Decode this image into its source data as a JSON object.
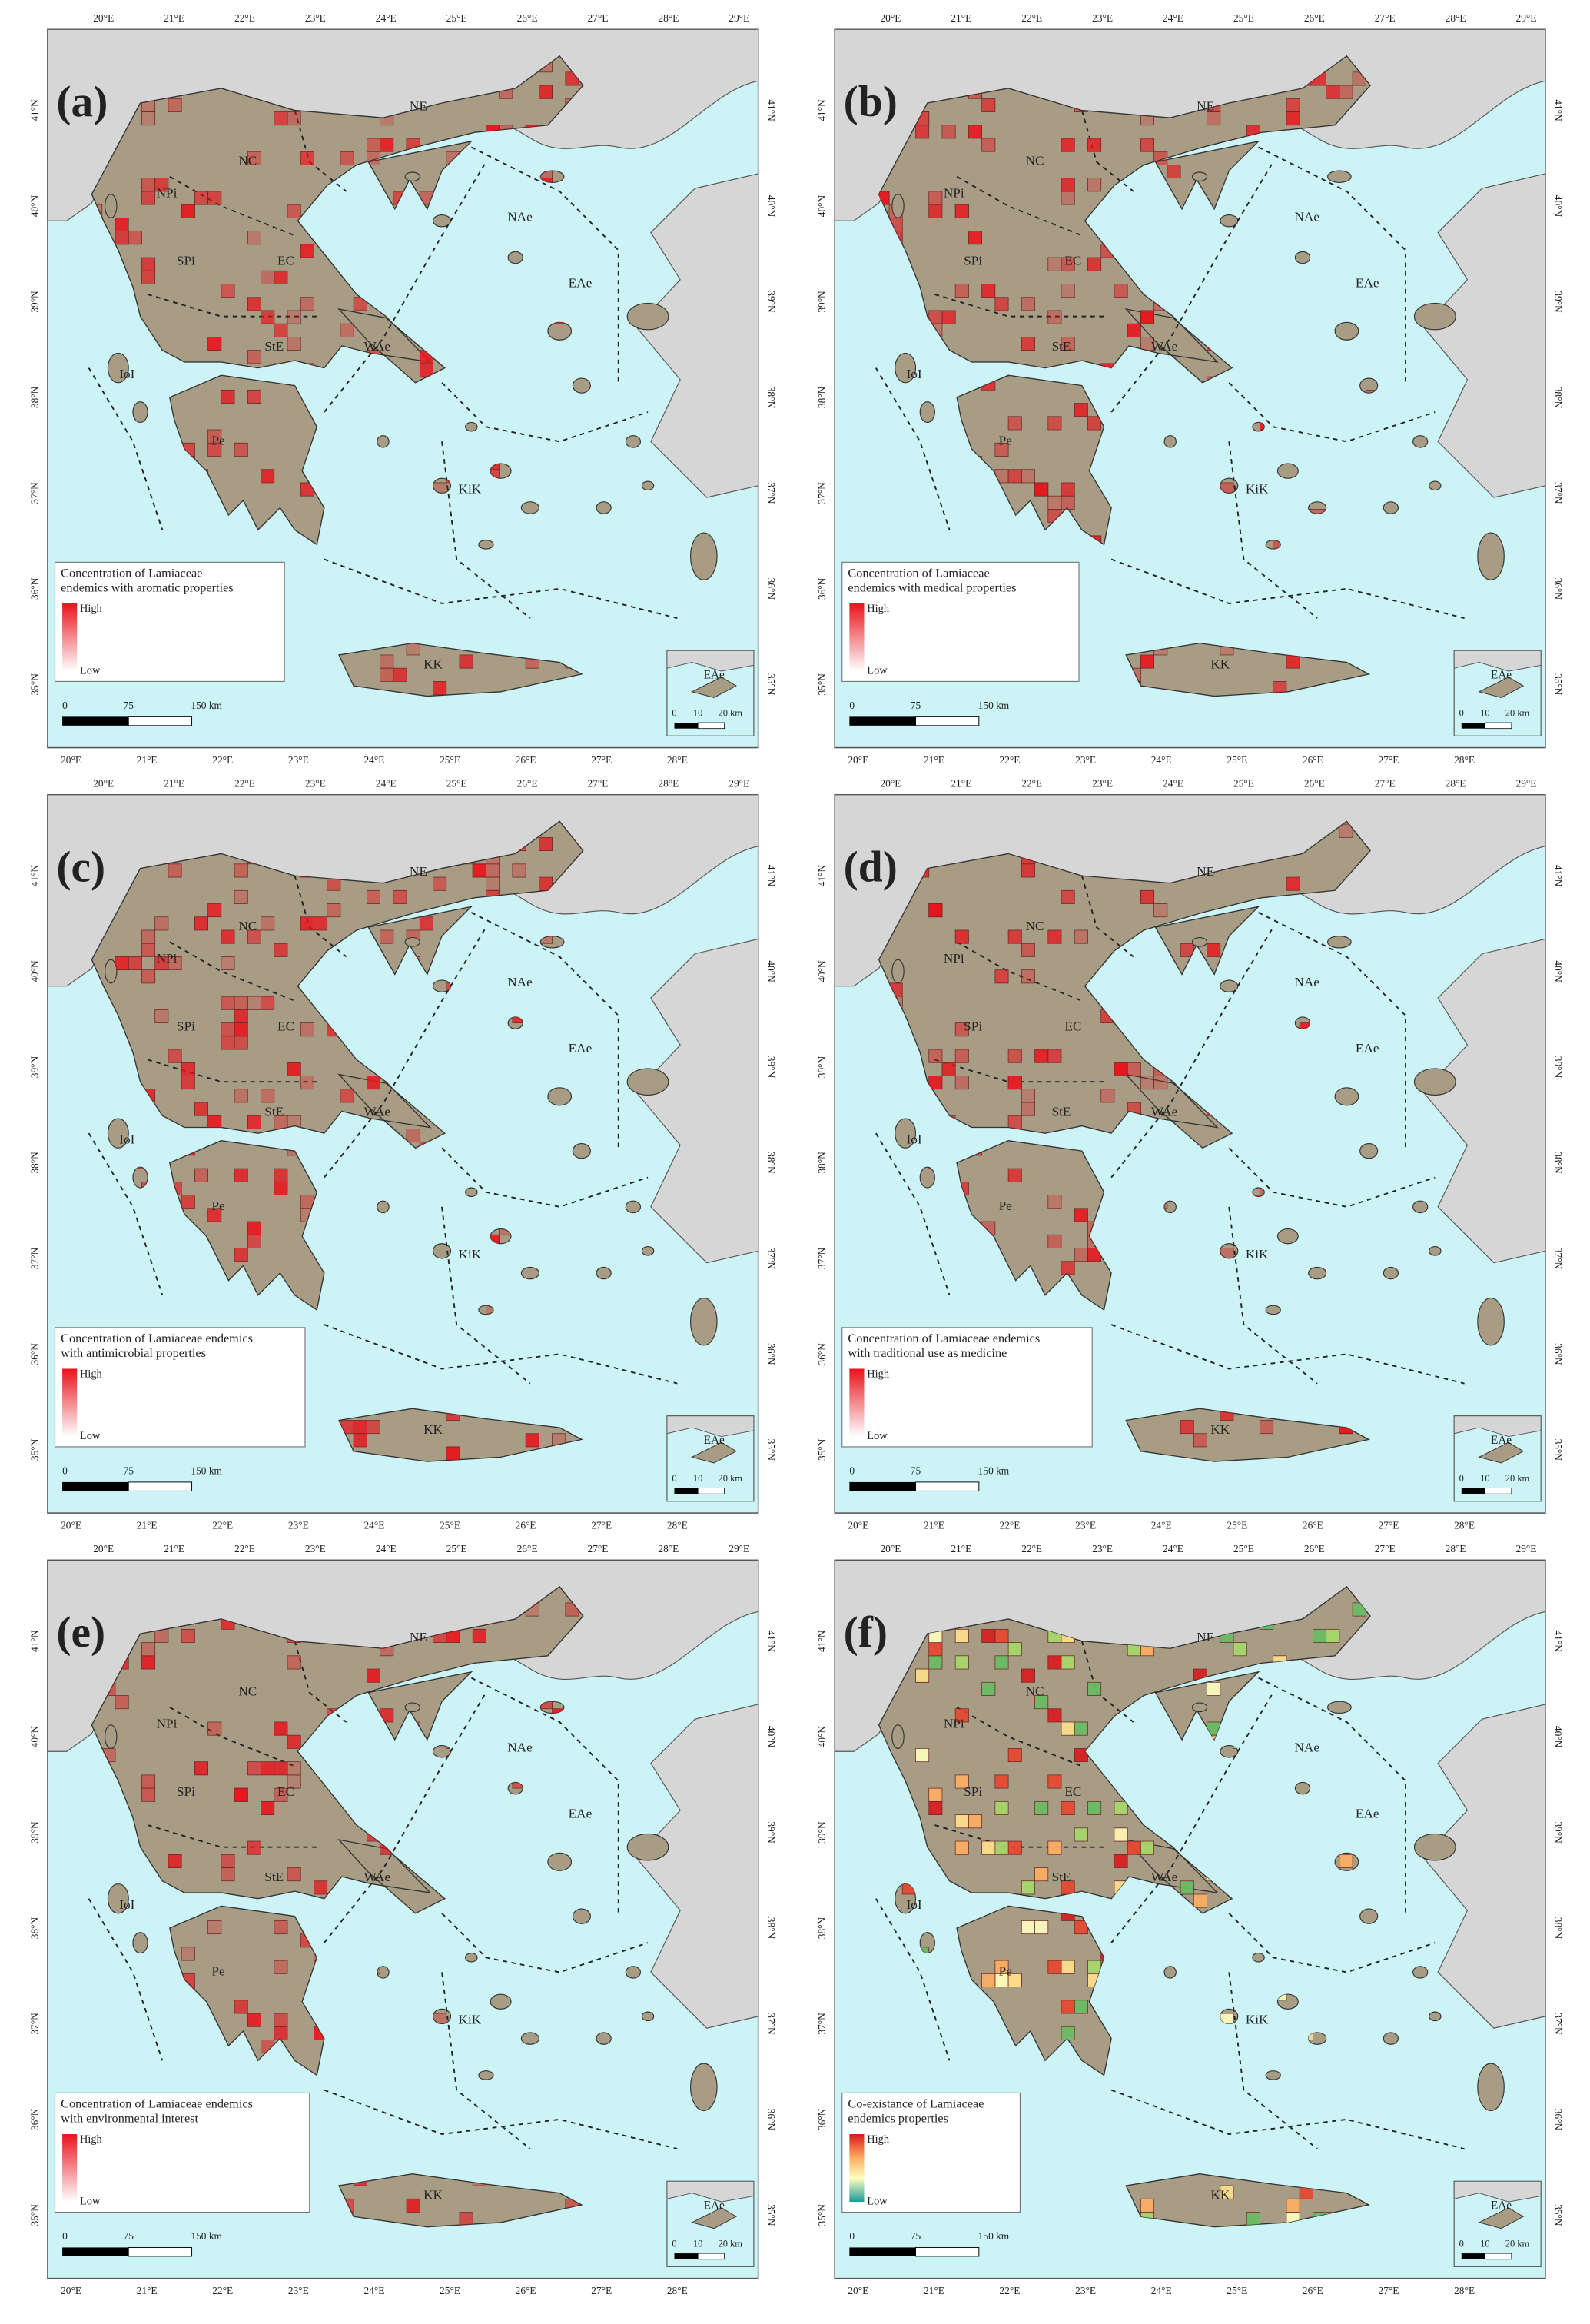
{
  "panels": [
    {
      "label": "(a)",
      "legend_title": [
        "Concentration of Lamiaceae",
        "endemics with aromatic properties"
      ]
    },
    {
      "label": "(b)",
      "legend_title": [
        "Concentration of Lamiaceae",
        "endemics with medical properties"
      ]
    },
    {
      "label": "(c)",
      "legend_title": [
        "Concentration of Lamiaceae endemics",
        "with antimicrobial properties"
      ]
    },
    {
      "label": "(d)",
      "legend_title": [
        "Concentration of Lamiaceae endemics",
        "with traditional use as medicine"
      ]
    },
    {
      "label": "(e)",
      "legend_title": [
        "Concentration of  Lamiaceae endemics",
        "with environmental interest"
      ]
    },
    {
      "label": "(f)",
      "legend_title": [
        "Co-existance of Lamiaceae",
        "endemics properties"
      ]
    }
  ],
  "legend_high": "High",
  "legend_low": "Low",
  "regions": [
    "NE",
    "NC",
    "NPi",
    "SPi",
    "EC",
    "StE",
    "WAe",
    "IoI",
    "Pe",
    "NAe",
    "EAe",
    "KiK",
    "KK"
  ],
  "lon_labels_top": [
    "20°E",
    "21°E",
    "22°E",
    "23°E",
    "24°E",
    "25°E",
    "26°E",
    "27°E",
    "28°E",
    "29°E"
  ],
  "lon_labels_bottom": [
    "20°E",
    "21°E",
    "22°E",
    "23°E",
    "24°E",
    "25°E",
    "26°E",
    "27°E",
    "28°E"
  ],
  "lat_labels": [
    "41°N",
    "40°N",
    "39°N",
    "38°N",
    "37°N",
    "36°N",
    "35°N"
  ],
  "scale_bar": [
    "0",
    "75",
    "150 km"
  ],
  "inset_scale": [
    "0",
    "10",
    "20 km"
  ],
  "inset_label": "EAe"
}
